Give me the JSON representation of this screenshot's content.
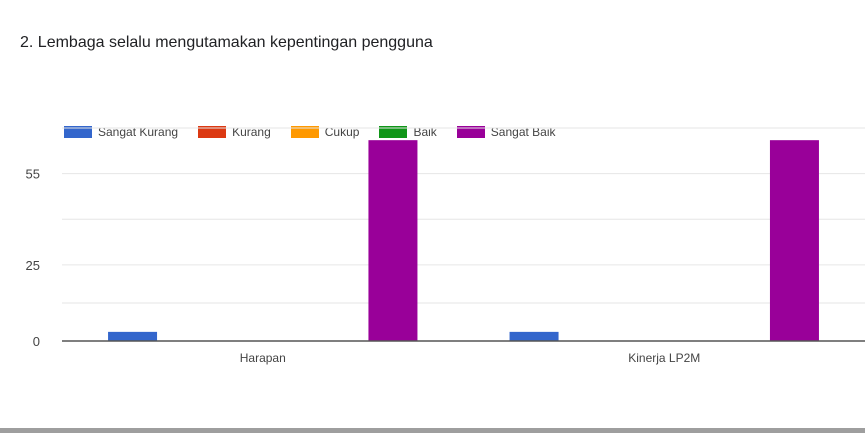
{
  "title": "2. Lembaga selalu mengutamakan kepentingan pengguna",
  "colors": {
    "Sangat Kurang": "#3366cc",
    "Kurang": "#dc3912",
    "Cukup": "#ff9900",
    "Baik": "#109618",
    "Sangat Baik": "#990099"
  },
  "chart_data": {
    "type": "bar",
    "title": "2. Lembaga selalu mengutamakan kepentingan pengguna",
    "categories": [
      "Harapan",
      "Kinerja LP2M"
    ],
    "series": [
      {
        "name": "Sangat Kurang",
        "values": [
          3,
          3
        ]
      },
      {
        "name": "Kurang",
        "values": [
          0,
          0
        ]
      },
      {
        "name": "Cukup",
        "values": [
          0,
          0
        ]
      },
      {
        "name": "Baik",
        "values": [
          0,
          0
        ]
      },
      {
        "name": "Sangat Baik",
        "values": [
          66,
          66
        ]
      }
    ],
    "yticks": [
      0,
      25,
      55
    ],
    "ylim": [
      0,
      70
    ],
    "grid": true,
    "legend": "top-left"
  }
}
